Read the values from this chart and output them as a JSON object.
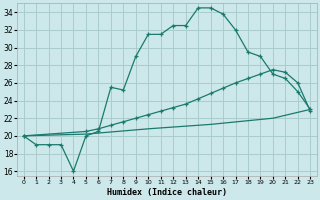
{
  "title": "",
  "xlabel": "Humidex (Indice chaleur)",
  "bg_color": "#cce8ea",
  "grid_color": "#aacccc",
  "line_color": "#1a7a6e",
  "xlim": [
    -0.5,
    23.5
  ],
  "ylim": [
    15.5,
    35.0
  ],
  "xticks": [
    0,
    1,
    2,
    3,
    4,
    5,
    6,
    7,
    8,
    9,
    10,
    11,
    12,
    13,
    14,
    15,
    16,
    17,
    18,
    19,
    20,
    21,
    22,
    23
  ],
  "yticks": [
    16,
    18,
    20,
    22,
    24,
    26,
    28,
    30,
    32,
    34
  ],
  "line1_x": [
    0,
    1,
    2,
    3,
    4,
    5,
    6,
    7,
    8,
    9,
    10,
    11,
    12,
    13,
    14,
    15,
    16,
    17,
    18,
    19,
    20,
    21,
    22,
    23
  ],
  "line1_y": [
    20.0,
    19.0,
    19.0,
    19.0,
    16.0,
    20.0,
    20.5,
    25.5,
    25.2,
    29.0,
    31.5,
    31.5,
    32.5,
    32.5,
    34.5,
    34.5,
    33.8,
    32.0,
    29.5,
    29.0,
    27.0,
    26.5,
    25.0,
    23.0
  ],
  "line2_x": [
    0,
    5,
    6,
    7,
    8,
    9,
    10,
    11,
    12,
    13,
    14,
    15,
    16,
    17,
    18,
    19,
    20,
    21,
    22,
    23
  ],
  "line2_y": [
    20.0,
    20.5,
    20.8,
    21.2,
    21.6,
    22.0,
    22.4,
    22.8,
    23.2,
    23.6,
    24.2,
    24.8,
    25.4,
    26.0,
    26.5,
    27.0,
    27.5,
    27.2,
    26.0,
    22.8
  ],
  "line3_x": [
    0,
    5,
    10,
    15,
    20,
    23
  ],
  "line3_y": [
    20.0,
    20.2,
    20.8,
    21.3,
    22.0,
    23.0
  ]
}
